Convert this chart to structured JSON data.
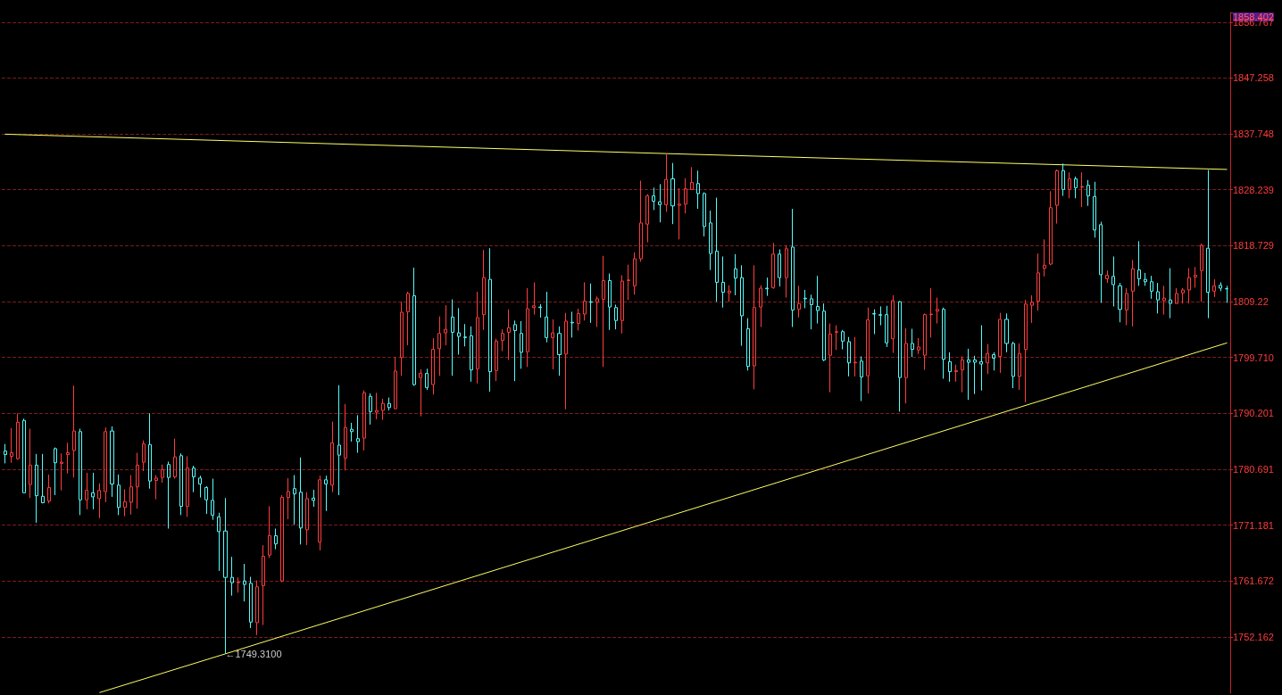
{
  "chart_data": {
    "type": "candlestick",
    "categories": [
      null,
      null,
      null,
      null,
      null,
      null,
      null,
      null,
      null,
      null,
      null,
      null,
      null,
      null,
      null,
      null,
      null,
      null,
      null,
      null,
      null,
      null,
      null,
      null,
      null,
      null,
      null,
      null,
      null,
      null,
      null,
      null,
      null,
      null,
      null,
      null,
      null,
      null,
      null,
      null,
      null,
      null,
      null,
      null,
      null,
      null,
      null,
      null,
      null,
      null,
      null,
      null,
      null,
      null,
      null,
      null,
      null,
      null,
      null,
      null,
      null,
      null,
      null,
      null,
      null,
      null,
      null,
      null,
      null,
      null,
      null,
      null,
      null,
      null,
      null,
      null,
      null,
      null,
      null,
      null,
      null,
      null,
      null,
      null,
      null,
      null,
      null,
      null,
      null,
      null,
      null,
      null,
      null,
      null,
      null,
      null,
      null,
      null,
      null,
      null,
      null,
      null,
      null,
      null,
      null,
      null,
      null,
      null,
      null,
      null,
      null,
      null,
      null,
      null,
      null,
      null,
      null,
      null,
      null,
      null,
      null,
      null,
      null,
      null,
      null,
      null,
      null,
      null,
      null,
      null,
      null,
      null,
      null,
      null,
      null,
      null,
      null,
      null,
      null,
      null,
      null,
      null,
      null,
      null,
      null,
      null,
      null,
      null,
      null,
      null,
      null,
      null,
      null,
      null,
      null,
      null,
      null,
      null,
      null,
      null,
      null,
      null,
      null,
      null,
      null,
      null,
      null,
      null,
      null,
      null,
      null,
      null,
      null,
      null,
      null,
      null,
      null,
      null,
      null,
      null,
      null,
      null,
      null,
      null,
      null,
      null,
      null,
      null,
      null,
      null,
      null,
      null,
      null,
      null,
      null
    ],
    "colors": [
      "#54fcfc",
      "#ff3c3c",
      "#ff3c3c",
      "#54fcfc",
      "#ff3c3c",
      "#54fcfc",
      "#54fcfc",
      "#ff3c3c",
      "#54fcfc",
      "#ff3c3c",
      "#ff3c3c",
      "#ff3c3c",
      "#54fcfc",
      "#ff3c3c",
      "#54fcfc",
      "#ff3c3c",
      "#ff3c3c",
      "#54fcfc",
      "#54fcfc",
      "#ff3c3c",
      "#ff3c3c",
      "#ff3c3c",
      "#ff3c3c",
      "#54fcfc",
      "#ff3c3c",
      "#ff3c3c",
      "#54fcfc",
      "#ff3c3c",
      "#54fcfc",
      "#ff3c3c",
      "#54fcfc",
      "#54fcfc",
      "#54fcfc",
      "#54fcfc",
      "#54fcfc",
      "#54fcfc",
      "#54fcfc",
      "#ff3c3c",
      "#54fcfc",
      "#54fcfc",
      "#ff3c3c",
      "#ff3c3c",
      "#ff3c3c",
      "#54fcfc",
      "#ff3c3c",
      "#ff3c3c",
      "#54fcfc",
      "#54fcfc",
      "#ff3c3c",
      "#54fcfc",
      "#ff3c3c",
      "#54fcfc",
      "#ff3c3c",
      "#54fcfc",
      "#ff3c3c",
      "#54fcfc",
      "#54fcfc",
      "#ff3c3c",
      "#54fcfc",
      "#ff3c3c",
      "#ff3c3c",
      "#54fcfc",
      "#ff3c3c",
      "#ff3c3c",
      "#ff3c3c",
      "#54fcfc",
      "#ff3c3c",
      "#54fcfc",
      "#ff3c3c",
      "#ff3c3c",
      "#ff3c3c",
      "#54fcfc",
      "#54fcfc",
      "#54fcfc",
      "#54fcfc",
      "#ff3c3c",
      "#ff3c3c",
      "#54fcfc",
      "#ff3c3c",
      "#ff3c3c",
      "#ff3c3c",
      "#54fcfc",
      "#54fcfc",
      "#ff3c3c",
      "#ff3c3c",
      "#54fcfc",
      "#54fcfc",
      "#ff3c3c",
      "#54fcfc",
      "#ff3c3c",
      "#54fcfc",
      "#ff3c3c",
      "#ff3c3c",
      "#54fcfc",
      "#ff3c3c",
      "#ff3c3c",
      "#54fcfc",
      "#54fcfc",
      "#ff3c3c",
      "#ff3c3c",
      "#ff3c3c",
      "#ff3c3c",
      "#ff3c3c",
      "#54fcfc",
      "#54fcfc",
      "#ff3c3c",
      "#54fcfc",
      "#ff3c3c",
      "#ff3c3c",
      "#ff3c3c",
      "#54fcfc",
      "#54fcfc",
      "#54fcfc",
      "#54fcfc",
      "#54fcfc",
      "#ff3c3c",
      "#54fcfc",
      "#54fcfc",
      "#54fcfc",
      "#ff3c3c",
      "#ff3c3c",
      "#54fcfc",
      "#ff3c3c",
      "#54fcfc",
      "#ff3c3c",
      "#54fcfc",
      "#ff3c3c",
      "#54fcfc",
      "#54fcfc",
      "#54fcfc",
      "#54fcfc",
      "#ff3c3c",
      "#ff3c3c",
      "#54fcfc",
      "#54fcfc",
      "#ff3c3c",
      "#54fcfc",
      "#ff3c3c",
      "#54fcfc",
      "#54fcfc",
      "#54fcfc",
      "#ff3c3c",
      "#54fcfc",
      "#ff3c3c",
      "#54fcfc",
      "#ff3c3c",
      "#ff3c3c",
      "#ff3c3c",
      "#ff3c3c",
      "#54fcfc",
      "#54fcfc",
      "#ff3c3c",
      "#ff3c3c",
      "#54fcfc",
      "#54fcfc",
      "#54fcfc",
      "#ff3c3c",
      "#54fcfc",
      "#ff3c3c",
      "#54fcfc",
      "#54fcfc",
      "#ff3c3c",
      "#ff3c3c",
      "#ff3c3c",
      "#ff3c3c",
      "#ff3c3c",
      "#ff3c3c",
      "#ff3c3c",
      "#54fcfc",
      "#ff3c3c",
      "#54fcfc",
      "#ff3c3c",
      "#54fcfc",
      "#54fcfc",
      "#54fcfc",
      "#ff3c3c",
      "#54fcfc",
      "#54fcfc",
      "#ff3c3c",
      "#ff3c3c",
      "#54fcfc",
      "#54fcfc",
      "#54fcfc",
      "#54fcfc",
      "#ff3c3c",
      "#54fcfc",
      "#ff3c3c",
      "#ff3c3c",
      "#ff3c3c",
      "#ff3c3c",
      "#ff3c3c",
      "#54fcfc",
      "#ff3c3c",
      "#54fcfc",
      "#54fcfc"
    ],
    "ohlc": [
      [
        1783.8,
        1785.0,
        1781.7,
        1783.2
      ],
      [
        1782.9,
        1787.7,
        1781.8,
        1783.5
      ],
      [
        1782.5,
        1790.2,
        1782.3,
        1788.7
      ],
      [
        1789.0,
        1789.3,
        1776.7,
        1776.7
      ],
      [
        1778.1,
        1787.6,
        1775.8,
        1781.4
      ],
      [
        1781.4,
        1783.3,
        1771.6,
        1776.2
      ],
      [
        1776.1,
        1783.3,
        1774.9,
        1775.0
      ],
      [
        1775.3,
        1779.8,
        1774.9,
        1777.6
      ],
      [
        1784.2,
        1784.4,
        1776.3,
        1781.8
      ],
      [
        1781.7,
        1783.4,
        1777.1,
        1781.9
      ],
      [
        1783.2,
        1785.2,
        1780.0,
        1783.5
      ],
      [
        1783.9,
        1794.9,
        1779.3,
        1787.2
      ],
      [
        1787.1,
        1787.6,
        1772.9,
        1775.5
      ],
      [
        1775.5,
        1780.1,
        1773.9,
        1777.1
      ],
      [
        1776.7,
        1780.1,
        1773.9,
        1776.0
      ],
      [
        1775.7,
        1778.3,
        1772.4,
        1777.1
      ],
      [
        1776.9,
        1787.8,
        1775.1,
        1787.1
      ],
      [
        1787.2,
        1788.0,
        1776.0,
        1778.2
      ],
      [
        1778.0,
        1779.8,
        1772.9,
        1774.2
      ],
      [
        1774.2,
        1777.3,
        1772.7,
        1775.2
      ],
      [
        1775.1,
        1779.7,
        1773.0,
        1777.7
      ],
      [
        1777.7,
        1783.5,
        1774.0,
        1781.4
      ],
      [
        1781.9,
        1785.6,
        1780.4,
        1785.0
      ],
      [
        1784.9,
        1790.2,
        1777.4,
        1778.7
      ],
      [
        1778.8,
        1779.7,
        1775.6,
        1779.2
      ],
      [
        1779.3,
        1781.5,
        1778.4,
        1780.6
      ],
      [
        1781.5,
        1782.0,
        1770.6,
        1779.3
      ],
      [
        1779.4,
        1785.9,
        1779.1,
        1782.8
      ],
      [
        1783.0,
        1783.4,
        1772.9,
        1774.4
      ],
      [
        1774.4,
        1782.9,
        1772.6,
        1780.9
      ],
      [
        1780.9,
        1781.3,
        1776.8,
        1779.4
      ],
      [
        1779.2,
        1779.6,
        1775.9,
        1778.2
      ],
      [
        1777.6,
        1777.8,
        1773.1,
        1775.5
      ],
      [
        1775.4,
        1779.1,
        1772.1,
        1772.9
      ],
      [
        1772.6,
        1773.3,
        1763.4,
        1770.1
      ],
      [
        1770.2,
        1775.8,
        1749.31,
        1762.3
      ],
      [
        1762.3,
        1765.8,
        1759.2,
        1761.4
      ],
      [
        1761.4,
        1762.3,
        1759.7,
        1761.5
      ],
      [
        1761.7,
        1764.6,
        1758.2,
        1761.1
      ],
      [
        1761.3,
        1762.4,
        1753.7,
        1754.7
      ],
      [
        1754.6,
        1761.8,
        1752.5,
        1760.7
      ],
      [
        1760.9,
        1767.8,
        1754.2,
        1765.9
      ],
      [
        1766.1,
        1774.4,
        1765.6,
        1769.4
      ],
      [
        1769.4,
        1770.6,
        1767.1,
        1768.0
      ],
      [
        1761.7,
        1776.3,
        1761.5,
        1775.9
      ],
      [
        1775.9,
        1779.2,
        1772.2,
        1776.9
      ],
      [
        1777.4,
        1779.7,
        1771.3,
        1776.5
      ],
      [
        1776.8,
        1782.7,
        1767.9,
        1770.7
      ],
      [
        1770.4,
        1776.8,
        1767.8,
        1775.7
      ],
      [
        1775.8,
        1777.2,
        1774.3,
        1775.4
      ],
      [
        1768.3,
        1779.6,
        1766.9,
        1778.9
      ],
      [
        1778.9,
        1779.6,
        1773.6,
        1778.2
      ],
      [
        1778.0,
        1788.8,
        1776.8,
        1785.2
      ],
      [
        1784.8,
        1795.0,
        1776.3,
        1783.1
      ],
      [
        1782.6,
        1791.8,
        1780.5,
        1787.8
      ],
      [
        1787.5,
        1788.6,
        1785.4,
        1787.1
      ],
      [
        1785.9,
        1789.9,
        1783.5,
        1785.4
      ],
      [
        1786.0,
        1794.1,
        1783.9,
        1793.7
      ],
      [
        1793.1,
        1793.6,
        1788.3,
        1790.5
      ],
      [
        1790.4,
        1793.7,
        1789.2,
        1790.7
      ],
      [
        1790.7,
        1792.7,
        1789.1,
        1791.9
      ],
      [
        1791.9,
        1792.9,
        1790.7,
        1791.2
      ],
      [
        1791.0,
        1799.8,
        1791.0,
        1797.4
      ],
      [
        1799.7,
        1809.2,
        1796.6,
        1807.4
      ],
      [
        1807.5,
        1810.9,
        1801.8,
        1810.6
      ],
      [
        1810.2,
        1815.0,
        1794.9,
        1795.1
      ],
      [
        1796.3,
        1797.7,
        1789.7,
        1797.0
      ],
      [
        1797.0,
        1797.8,
        1794.2,
        1794.6
      ],
      [
        1795.1,
        1803.0,
        1793.4,
        1801.1
      ],
      [
        1801.2,
        1806.7,
        1796.6,
        1803.8
      ],
      [
        1803.9,
        1808.6,
        1801.8,
        1804.5
      ],
      [
        1806.6,
        1809.6,
        1796.6,
        1804.0
      ],
      [
        1803.9,
        1808.1,
        1800.2,
        1803.3
      ],
      [
        1803.2,
        1805.4,
        1801.6,
        1803.1
      ],
      [
        1803.4,
        1805.0,
        1795.6,
        1797.6
      ],
      [
        1797.8,
        1810.9,
        1795.3,
        1806.5
      ],
      [
        1807.0,
        1818.0,
        1804.4,
        1813.3
      ],
      [
        1813.0,
        1818.3,
        1793.9,
        1797.3
      ],
      [
        1797.5,
        1802.9,
        1795.7,
        1802.5
      ],
      [
        1802.6,
        1804.5,
        1800.8,
        1803.8
      ],
      [
        1804.0,
        1807.9,
        1799.3,
        1804.8
      ],
      [
        1805.3,
        1806.0,
        1795.7,
        1804.3
      ],
      [
        1803.8,
        1805.9,
        1797.8,
        1800.6
      ],
      [
        1800.7,
        1811.5,
        1798.1,
        1808.0
      ],
      [
        1808.2,
        1812.5,
        1807.0,
        1808.5
      ],
      [
        1808.3,
        1808.8,
        1806.5,
        1808.2
      ],
      [
        1806.6,
        1810.9,
        1802.3,
        1803.1
      ],
      [
        1803.1,
        1806.2,
        1797.7,
        1803.9
      ],
      [
        1803.8,
        1805.0,
        1796.6,
        1800.2
      ],
      [
        1800.3,
        1807.3,
        1790.9,
        1805.9
      ],
      [
        1805.7,
        1807.5,
        1803.1,
        1805.6
      ],
      [
        1805.5,
        1808.0,
        1804.3,
        1807.2
      ],
      [
        1807.1,
        1812.5,
        1806.0,
        1809.3
      ],
      [
        1809.2,
        1812.3,
        1805.6,
        1809.1
      ],
      [
        1809.1,
        1810.1,
        1804.9,
        1809.7
      ],
      [
        1809.6,
        1817.0,
        1798.1,
        1812.8
      ],
      [
        1812.8,
        1814.0,
        1804.4,
        1808.3
      ],
      [
        1808.2,
        1808.7,
        1804.5,
        1806.0
      ],
      [
        1806.0,
        1813.7,
        1803.8,
        1812.7
      ],
      [
        1812.8,
        1815.5,
        1809.5,
        1812.9
      ],
      [
        1811.9,
        1817.6,
        1810.4,
        1816.5
      ],
      [
        1816.5,
        1829.8,
        1816.0,
        1822.6
      ],
      [
        1822.4,
        1827.5,
        1819.3,
        1827.2
      ],
      [
        1827.2,
        1828.6,
        1824.8,
        1826.3
      ],
      [
        1826.2,
        1829.2,
        1822.7,
        1825.7
      ],
      [
        1825.7,
        1834.3,
        1824.5,
        1830.0
      ],
      [
        1830.1,
        1832.8,
        1822.4,
        1825.5
      ],
      [
        1825.6,
        1828.5,
        1819.8,
        1825.8
      ],
      [
        1825.8,
        1830.2,
        1824.2,
        1828.4
      ],
      [
        1828.3,
        1832.1,
        1828.2,
        1829.5
      ],
      [
        1829.3,
        1831.5,
        1825.0,
        1827.6
      ],
      [
        1827.6,
        1827.8,
        1820.3,
        1822.0
      ],
      [
        1822.6,
        1824.7,
        1814.6,
        1817.4
      ],
      [
        1817.8,
        1826.9,
        1809.2,
        1812.5
      ],
      [
        1812.5,
        1816.9,
        1808.2,
        1810.8
      ],
      [
        1810.7,
        1812.0,
        1809.2,
        1811.0
      ],
      [
        1814.8,
        1817.3,
        1810.3,
        1813.2
      ],
      [
        1813.3,
        1815.4,
        1801.7,
        1806.8
      ],
      [
        1804.6,
        1806.4,
        1797.5,
        1798.2
      ],
      [
        1798.3,
        1815.4,
        1794.3,
        1808.2
      ],
      [
        1808.3,
        1812.0,
        1804.9,
        1811.5
      ],
      [
        1811.5,
        1813.3,
        1810.2,
        1811.4
      ],
      [
        1811.6,
        1819.2,
        1811.4,
        1817.3
      ],
      [
        1817.3,
        1818.1,
        1811.8,
        1813.3
      ],
      [
        1813.3,
        1818.8,
        1809.9,
        1818.2
      ],
      [
        1818.5,
        1825.0,
        1804.9,
        1807.8
      ],
      [
        1807.9,
        1811.9,
        1806.5,
        1808.9
      ],
      [
        1809.8,
        1811.2,
        1808.1,
        1809.7
      ],
      [
        1809.7,
        1810.4,
        1804.5,
        1808.7
      ],
      [
        1808.4,
        1813.6,
        1805.5,
        1807.7
      ],
      [
        1807.6,
        1808.9,
        1799.1,
        1799.3
      ],
      [
        1800.1,
        1805.5,
        1793.8,
        1803.7
      ],
      [
        1804.0,
        1805.2,
        1801.0,
        1804.1
      ],
      [
        1804.1,
        1804.4,
        1801.1,
        1802.5
      ],
      [
        1802.4,
        1803.2,
        1796.5,
        1798.8
      ],
      [
        1798.8,
        1803.2,
        1796.5,
        1798.9
      ],
      [
        1799.1,
        1799.9,
        1792.3,
        1796.4
      ],
      [
        1796.6,
        1808.2,
        1793.6,
        1806.1
      ],
      [
        1807.2,
        1807.9,
        1803.7,
        1807.1
      ],
      [
        1807.0,
        1808.4,
        1805.2,
        1806.9
      ],
      [
        1807.0,
        1808.5,
        1801.5,
        1802.2
      ],
      [
        1802.9,
        1810.3,
        1800.5,
        1809.4
      ],
      [
        1809.2,
        1809.3,
        1790.5,
        1796.3
      ],
      [
        1796.3,
        1804.7,
        1791.9,
        1802.1
      ],
      [
        1802.1,
        1804.6,
        1799.8,
        1801.1
      ],
      [
        1801.0,
        1803.0,
        1800.3,
        1801.5
      ],
      [
        1800.1,
        1807.2,
        1797.6,
        1807.0
      ],
      [
        1807.0,
        1811.5,
        1803.1,
        1807.1
      ],
      [
        1807.6,
        1809.9,
        1805.5,
        1807.9
      ],
      [
        1807.9,
        1808.2,
        1796.1,
        1799.4
      ],
      [
        1799.0,
        1800.6,
        1795.6,
        1797.3
      ],
      [
        1797.3,
        1798.5,
        1795.6,
        1797.5
      ],
      [
        1797.6,
        1799.9,
        1793.8,
        1799.3
      ],
      [
        1799.3,
        1801.2,
        1792.5,
        1798.9
      ],
      [
        1799.3,
        1800.0,
        1793.5,
        1798.9
      ],
      [
        1799.0,
        1805.2,
        1794.1,
        1798.6
      ],
      [
        1798.8,
        1802.0,
        1796.9,
        1800.4
      ],
      [
        1800.2,
        1800.6,
        1797.5,
        1799.6
      ],
      [
        1799.9,
        1807.3,
        1797.1,
        1806.2
      ],
      [
        1806.2,
        1807.2,
        1800.6,
        1802.1
      ],
      [
        1802.1,
        1802.4,
        1794.5,
        1796.5
      ],
      [
        1796.5,
        1802.1,
        1794.2,
        1800.4
      ],
      [
        1801.1,
        1809.5,
        1792.1,
        1808.8
      ],
      [
        1808.6,
        1810.3,
        1805.6,
        1809.1
      ],
      [
        1809.3,
        1817.4,
        1807.7,
        1814.1
      ],
      [
        1814.9,
        1819.8,
        1813.5,
        1815.4
      ],
      [
        1815.6,
        1828.0,
        1815.4,
        1825.2
      ],
      [
        1825.6,
        1831.7,
        1822.5,
        1831.5
      ],
      [
        1831.5,
        1832.7,
        1827.2,
        1828.3
      ],
      [
        1828.3,
        1831.2,
        1826.8,
        1830.1
      ],
      [
        1830.1,
        1830.5,
        1826.8,
        1828.6
      ],
      [
        1828.7,
        1831.2,
        1825.3,
        1828.8
      ],
      [
        1829.0,
        1829.9,
        1825.5,
        1827.2
      ],
      [
        1827.1,
        1829.6,
        1820.1,
        1821.4
      ],
      [
        1822.3,
        1822.8,
        1809.0,
        1813.8
      ],
      [
        1813.1,
        1814.5,
        1812.4,
        1813.7
      ],
      [
        1813.5,
        1816.9,
        1808.4,
        1812.1
      ],
      [
        1811.9,
        1812.4,
        1805.7,
        1807.9
      ],
      [
        1807.8,
        1811.5,
        1805.2,
        1810.6
      ],
      [
        1811.0,
        1816.3,
        1805.0,
        1814.8
      ],
      [
        1814.6,
        1819.5,
        1811.9,
        1813.1
      ],
      [
        1813.0,
        1814.1,
        1811.9,
        1812.6
      ],
      [
        1812.6,
        1813.6,
        1809.7,
        1811.0
      ],
      [
        1810.9,
        1812.4,
        1807.2,
        1809.5
      ],
      [
        1809.4,
        1811.9,
        1807.0,
        1809.8
      ],
      [
        1809.5,
        1814.9,
        1806.4,
        1808.9
      ],
      [
        1808.9,
        1811.5,
        1808.9,
        1810.6
      ],
      [
        1810.7,
        1811.5,
        1808.9,
        1811.2
      ],
      [
        1811.2,
        1814.9,
        1808.9,
        1813.3
      ],
      [
        1813.4,
        1815.1,
        1811.6,
        1813.7
      ],
      [
        1814.5,
        1819.1,
        1809.2,
        1818.8
      ],
      [
        1818.3,
        1831.6,
        1806.4,
        1810.8
      ],
      [
        1811.0,
        1813.0,
        1810.0,
        1811.9
      ],
      [
        1812.0,
        1812.5,
        1811.0,
        1811.5
      ],
      [
        1811.4,
        1811.9,
        1809.0,
        1811.4
      ]
    ],
    "series": [
      {
        "type": "line",
        "color": "#ffff66",
        "values": [
          1837.7,
          null,
          null,
          null,
          null,
          null,
          null,
          null,
          null,
          null,
          null,
          null,
          null,
          null,
          null,
          null,
          null,
          null,
          null,
          null,
          null,
          null,
          null,
          null,
          null,
          null,
          null,
          null,
          null,
          null,
          null,
          null,
          null,
          null,
          null,
          null,
          null,
          null,
          null,
          null,
          null,
          null,
          null,
          null,
          null,
          null,
          null,
          null,
          null,
          null,
          null,
          null,
          null,
          null,
          null,
          null,
          null,
          null,
          null,
          null,
          null,
          null,
          null,
          null,
          null,
          null,
          null,
          null,
          null,
          null,
          null,
          null,
          null,
          null,
          null,
          null,
          null,
          null,
          null,
          null,
          null,
          null,
          null,
          null,
          null,
          null,
          null,
          null,
          null,
          null,
          null,
          null,
          null,
          null,
          null,
          null,
          null,
          null,
          null,
          null,
          null,
          null,
          null,
          null,
          null,
          1834.4,
          null,
          null,
          null,
          null,
          null,
          null,
          null,
          null,
          null,
          null,
          null,
          null,
          null,
          null,
          null,
          null,
          null,
          null,
          null,
          null,
          null,
          null,
          null,
          null,
          null,
          null,
          null,
          null,
          null,
          null,
          null,
          null,
          null,
          null,
          null,
          null,
          null,
          null,
          null,
          null,
          null,
          null,
          null,
          null,
          null,
          null,
          null,
          null,
          null,
          null,
          null,
          null,
          null,
          null,
          null,
          null,
          null,
          null,
          null,
          null,
          null,
          null,
          null,
          null,
          null,
          null,
          null,
          null,
          null,
          null,
          null,
          null,
          null,
          null,
          null,
          null,
          null,
          null,
          null,
          null,
          null,
          null,
          null,
          null,
          null,
          null,
          null,
          null,
          1831.7
        ]
      },
      {
        "type": "line",
        "color": "#ffff66",
        "values": [
          null,
          null,
          null,
          null,
          null,
          null,
          null,
          null,
          null,
          null,
          null,
          null,
          null,
          null,
          null,
          1742.7,
          null,
          null,
          null,
          null,
          null,
          null,
          null,
          null,
          null,
          null,
          null,
          null,
          null,
          null,
          null,
          null,
          null,
          null,
          null,
          1749.3,
          null,
          null,
          null,
          null,
          null,
          null,
          null,
          null,
          null,
          null,
          null,
          null,
          null,
          null,
          null,
          null,
          null,
          null,
          null,
          null,
          null,
          null,
          null,
          null,
          null,
          null,
          null,
          null,
          null,
          null,
          null,
          null,
          null,
          null,
          null,
          null,
          null,
          null,
          null,
          null,
          null,
          null,
          null,
          null,
          null,
          null,
          null,
          null,
          null,
          null,
          null,
          null,
          null,
          null,
          null,
          null,
          null,
          null,
          null,
          null,
          null,
          null,
          null,
          null,
          null,
          null,
          null,
          null,
          null,
          null,
          null,
          null,
          null,
          null,
          null,
          null,
          null,
          null,
          null,
          null,
          null,
          null,
          null,
          null,
          null,
          null,
          null,
          null,
          null,
          null,
          null,
          null,
          null,
          null,
          null,
          null,
          null,
          null,
          null,
          null,
          null,
          null,
          null,
          null,
          null,
          null,
          null,
          null,
          null,
          null,
          null,
          null,
          null,
          null,
          null,
          null,
          null,
          null,
          null,
          null,
          null,
          null,
          null,
          null,
          null,
          null,
          null,
          null,
          null,
          null,
          null,
          null,
          null,
          null,
          null,
          null,
          null,
          null,
          null,
          null,
          null,
          null,
          null,
          null,
          null,
          null,
          null,
          null,
          null,
          null,
          null,
          null,
          null,
          null,
          null,
          null,
          null,
          null,
          1802.2
        ]
      }
    ],
    "annotations": [
      "←1749.3100"
    ],
    "ylim": [
      1742.6,
      1858.402
    ],
    "yticks": [
      1752.162,
      1761.672,
      1771.181,
      1780.691,
      1790.201,
      {
        "value": 1799.71,
        "label": "1799.710"
      },
      1809.22,
      1818.729,
      1828.239,
      1837.748,
      1847.258,
      1856.767,
      1858.402
    ],
    "grid": "y",
    "tick_labels": "y"
  }
}
